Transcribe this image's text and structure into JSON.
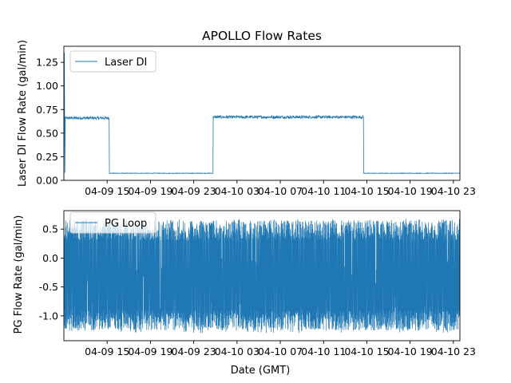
{
  "chart_data": [
    {
      "type": "line",
      "title": "APOLLO Flow Rates",
      "xlabel": "",
      "ylabel": "Laser DI Flow Rate (gal/min)",
      "ylim": [
        0,
        1.42
      ],
      "x_ticks": [
        "04-09 15",
        "04-09 19",
        "04-09 23",
        "04-10 03",
        "04-10 07",
        "04-10 11",
        "04-10 15",
        "04-10 19",
        "04-10 23"
      ],
      "y_ticks": [
        "0.00",
        "0.25",
        "0.50",
        "0.75",
        "1.00",
        "1.25"
      ],
      "y_tick_values": [
        0,
        0.25,
        0.5,
        0.75,
        1.0,
        1.25
      ],
      "x_range_hours": [
        11.0,
        47.6
      ],
      "grid": false,
      "legend_position": "upper-left",
      "color": "#1f77b4",
      "series": [
        {
          "name": "Laser DI",
          "segments": [
            {
              "start_h": 11.0,
              "end_h": 15.2,
              "value": 0.66,
              "noise": 0.015
            },
            {
              "start_h": 15.2,
              "end_h": 24.8,
              "value": 0.075,
              "noise": 0.003
            },
            {
              "start_h": 24.8,
              "end_h": 38.7,
              "value": 0.67,
              "noise": 0.015
            },
            {
              "start_h": 38.7,
              "end_h": 47.6,
              "value": 0.075,
              "noise": 0.003
            }
          ],
          "initial_spike": 1.35
        }
      ]
    },
    {
      "type": "line",
      "title": "",
      "xlabel": "Date (GMT)",
      "ylabel": "PG Flow Rate (gal/min)",
      "ylim": [
        -1.43,
        0.82
      ],
      "x_ticks": [
        "04-09 15",
        "04-09 19",
        "04-09 23",
        "04-10 03",
        "04-10 07",
        "04-10 11",
        "04-10 15",
        "04-10 19",
        "04-10 23"
      ],
      "y_ticks": [
        "0.5",
        "0.0",
        "-0.5",
        "-1.0"
      ],
      "y_tick_values": [
        0.5,
        0.0,
        -0.5,
        -1.0
      ],
      "x_range_hours": [
        11.0,
        47.6
      ],
      "grid": false,
      "legend_position": "upper-left",
      "color": "#1f77b4",
      "series": [
        {
          "name": "PG Loop",
          "min": -1.3,
          "max": 0.68,
          "typical_low": -1.15,
          "typical_high": 0.55
        }
      ]
    }
  ]
}
